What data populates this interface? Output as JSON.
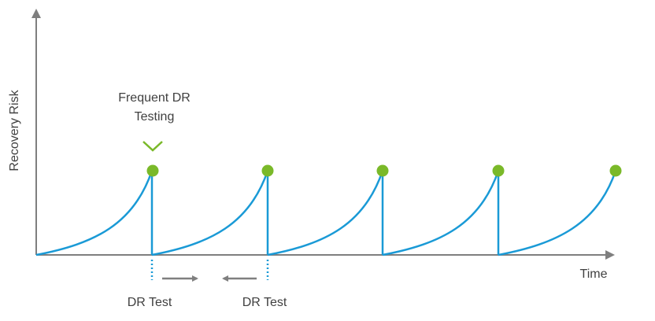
{
  "diagram": {
    "y_axis_label": "Recovery Risk",
    "x_axis_label": "Time",
    "annotation": {
      "lines": [
        "Frequent DR",
        "Testing"
      ]
    },
    "markers": [
      {
        "label": "DR Test"
      },
      {
        "label": "DR Test"
      }
    ]
  }
}
